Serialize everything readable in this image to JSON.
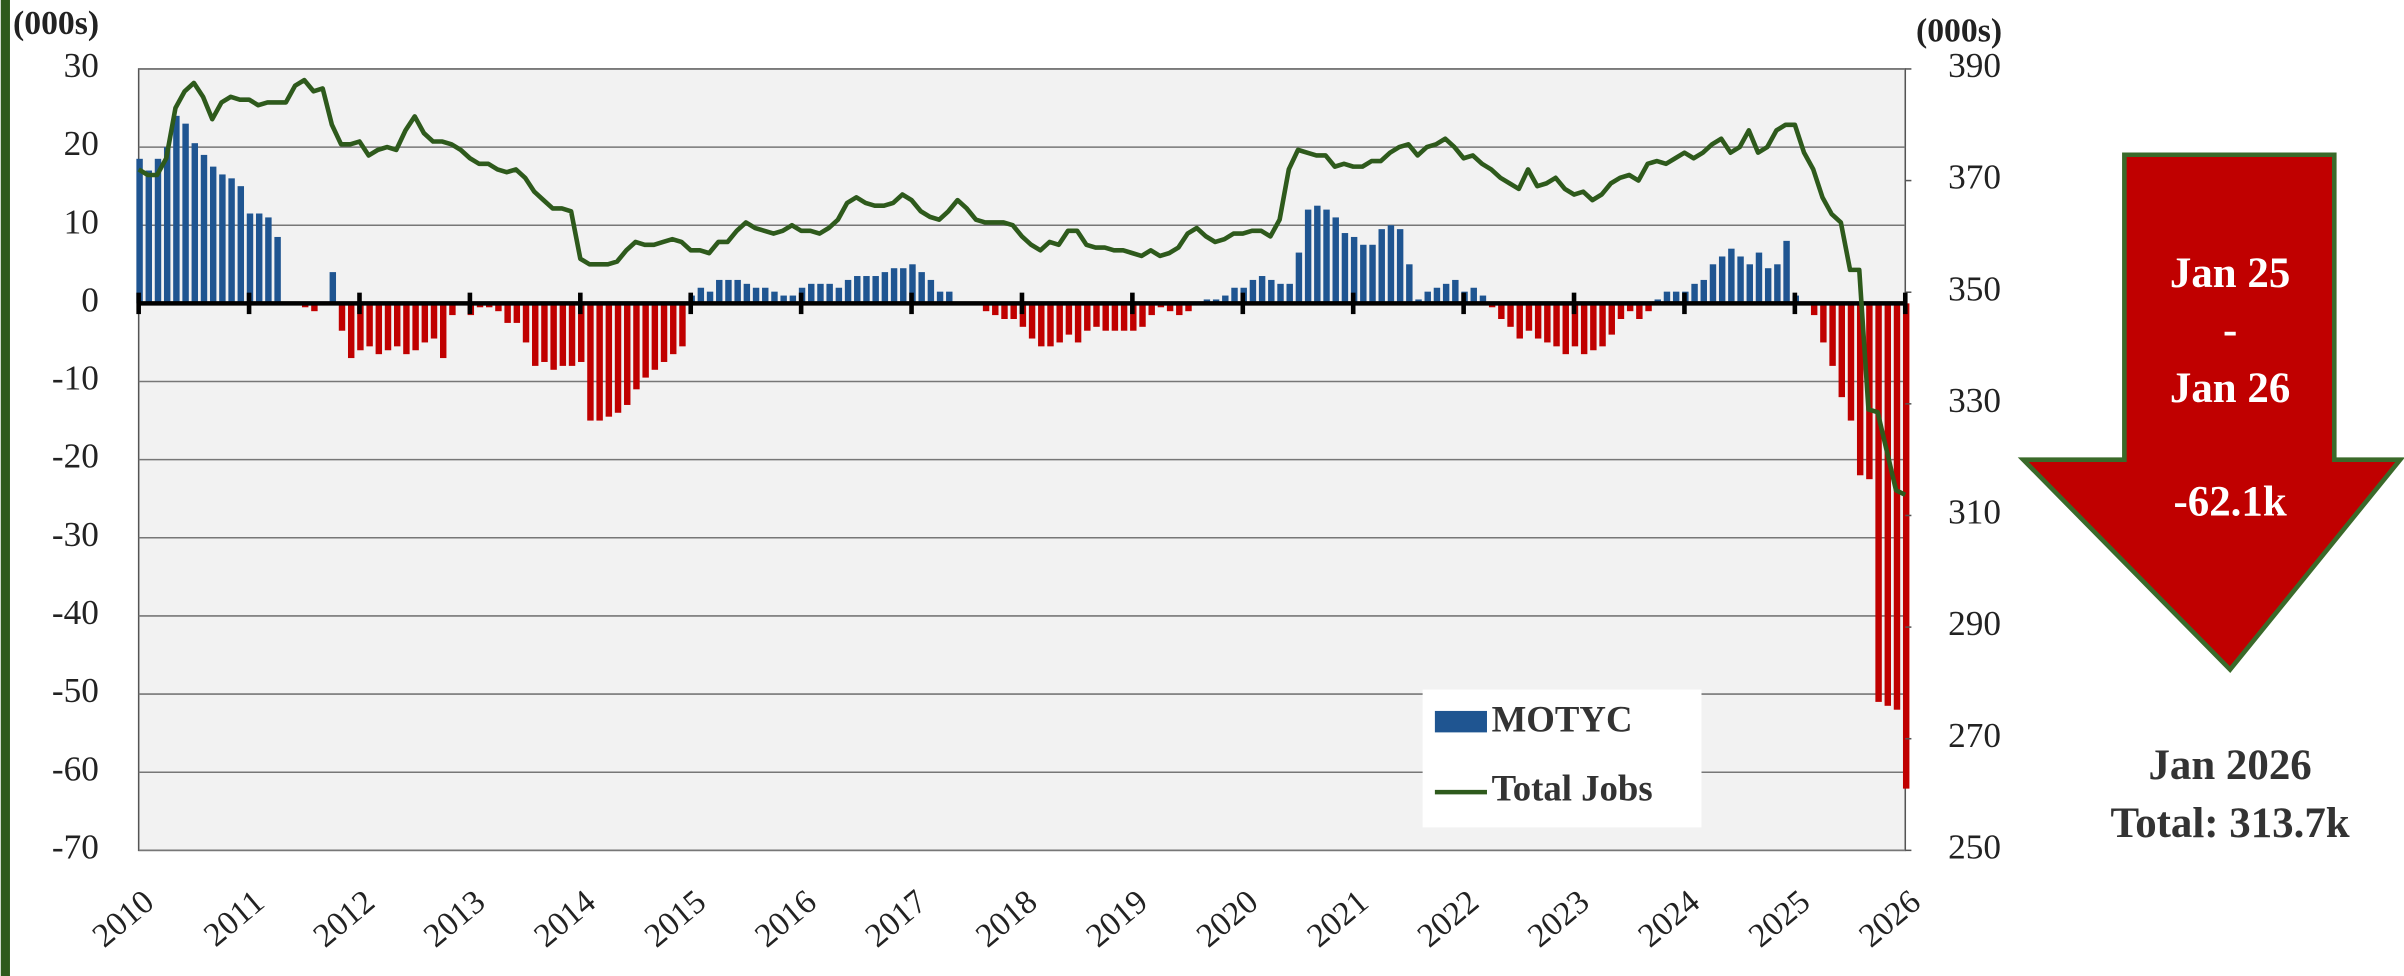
{
  "chart_data": {
    "type": "bar-line",
    "y_label": "(000s)",
    "y2_label": "(000s)",
    "categories": [
      "2010",
      null,
      null,
      null,
      null,
      null,
      null,
      null,
      null,
      null,
      null,
      null,
      "2011",
      null,
      null,
      null,
      null,
      null,
      null,
      null,
      null,
      null,
      null,
      null,
      "2012",
      null,
      null,
      null,
      null,
      null,
      null,
      null,
      null,
      null,
      null,
      null,
      "2013",
      null,
      null,
      null,
      null,
      null,
      null,
      null,
      null,
      null,
      null,
      null,
      "2014",
      null,
      null,
      null,
      null,
      null,
      null,
      null,
      null,
      null,
      null,
      null,
      "2015",
      null,
      null,
      null,
      null,
      null,
      null,
      null,
      null,
      null,
      null,
      null,
      "2016",
      null,
      null,
      null,
      null,
      null,
      null,
      null,
      null,
      null,
      null,
      null,
      "2017",
      null,
      null,
      null,
      null,
      null,
      null,
      null,
      null,
      null,
      null,
      null,
      "2018",
      null,
      null,
      null,
      null,
      null,
      null,
      null,
      null,
      null,
      null,
      null,
      "2019",
      null,
      null,
      null,
      null,
      null,
      null,
      null,
      null,
      null,
      null,
      null,
      "2020",
      null,
      null,
      null,
      null,
      null,
      null,
      null,
      null,
      null,
      null,
      null,
      "2021",
      null,
      null,
      null,
      null,
      null,
      null,
      null,
      null,
      null,
      null,
      null,
      "2022",
      null,
      null,
      null,
      null,
      null,
      null,
      null,
      null,
      null,
      null,
      null,
      "2023",
      null,
      null,
      null,
      null,
      null,
      null,
      null,
      null,
      null,
      null,
      null,
      "2024",
      null,
      null,
      null,
      null,
      null,
      null,
      null,
      null,
      null,
      null,
      null,
      "2025",
      null,
      null,
      null,
      null,
      null,
      null,
      null,
      null,
      null,
      null,
      null,
      "2026"
    ],
    "series": [
      {
        "name": "MOTYC",
        "type": "bar",
        "color": "#1f5591",
        "negative_color": "#c00000",
        "values": [
          18.5,
          17,
          18.5,
          20,
          24,
          23,
          20.5,
          19,
          17.5,
          16.5,
          16,
          15,
          11.5,
          11.5,
          11,
          8.5,
          0,
          0,
          -0.5,
          -1,
          0,
          4,
          -3.5,
          -7,
          -6,
          -5.5,
          -6.5,
          -6,
          -5.5,
          -6.5,
          -6,
          -5,
          -4.5,
          -7,
          -1.5,
          0,
          -1.5,
          -0.5,
          -0.5,
          -1,
          -2.5,
          -2.5,
          -5,
          -8,
          -7.5,
          -8.5,
          -8,
          -8,
          -7.5,
          -15,
          -15,
          -14.5,
          -14,
          -13,
          -11,
          -9.5,
          -8.5,
          -7.5,
          -6.5,
          -5.5,
          1,
          2,
          1.5,
          3,
          3,
          3,
          2.5,
          2,
          2,
          1.5,
          1,
          1,
          2,
          2.5,
          2.5,
          2.5,
          2,
          3,
          3.5,
          3.5,
          3.5,
          4,
          4.5,
          4.5,
          5,
          4,
          3,
          1.5,
          1.5,
          0,
          0,
          0,
          -1,
          -1.5,
          -2,
          -2,
          -3,
          -4.5,
          -5.5,
          -5.5,
          -5,
          -4,
          -5,
          -3.5,
          -3,
          -3.5,
          -3.5,
          -3.5,
          -3.5,
          -3,
          -1.5,
          -0.5,
          -1,
          -1.5,
          -1,
          0,
          0.5,
          0.5,
          1,
          2,
          2,
          3,
          3.5,
          3,
          2.5,
          2.5,
          6.5,
          12,
          12.5,
          12,
          11,
          9,
          8.5,
          7.5,
          7.5,
          9.5,
          10,
          9.5,
          5,
          0.5,
          1.5,
          2,
          2.5,
          3,
          1.5,
          2,
          1,
          -0.5,
          -2,
          -3,
          -4.5,
          -3.5,
          -4.5,
          -5,
          -5.5,
          -6.5,
          -5.5,
          -6.5,
          -6,
          -5.5,
          -4,
          -2,
          -1,
          -2,
          -1,
          0.5,
          1.5,
          1.5,
          1.5,
          2.5,
          3,
          5,
          6,
          7,
          6,
          5,
          6.5,
          4.5,
          5,
          8,
          1,
          0,
          -1.5,
          -5,
          -8,
          -12,
          -15,
          -22,
          -22.5,
          -51,
          -51.5,
          -52,
          -62.1
        ]
      },
      {
        "name": "Total Jobs",
        "type": "line",
        "axis": "y2",
        "color": "#2e5a1c",
        "values": [
          372,
          371,
          371,
          374,
          383,
          386,
          387.5,
          385,
          381,
          384,
          385,
          384.5,
          384.5,
          383.5,
          384,
          384,
          384,
          387,
          388,
          386,
          386.5,
          380,
          376.5,
          376.5,
          377,
          374.5,
          375.5,
          376,
          375.5,
          379,
          381.5,
          378.5,
          377,
          377,
          376.5,
          375.5,
          374,
          373,
          373,
          372,
          371.5,
          372,
          370.5,
          368,
          366.5,
          365,
          365,
          364.5,
          356,
          355,
          355,
          355,
          355.5,
          357.5,
          359,
          358.5,
          358.5,
          359,
          359.5,
          359,
          357.5,
          357.5,
          357,
          359,
          359,
          361,
          362.5,
          361.5,
          361,
          360.5,
          361,
          362,
          361,
          361,
          360.5,
          361.5,
          363,
          366,
          367,
          366,
          365.5,
          365.5,
          366,
          367.5,
          366.5,
          364.5,
          363.5,
          363,
          364.5,
          366.5,
          365,
          363,
          362.5,
          362.5,
          362.5,
          362,
          360,
          358.5,
          357.5,
          359,
          358.5,
          361,
          361,
          358.5,
          358,
          358,
          357.5,
          357.5,
          357,
          356.5,
          357.5,
          356.5,
          357,
          358,
          360.5,
          361.5,
          360,
          359,
          359.5,
          360.5,
          360.5,
          361,
          361,
          360,
          363,
          372,
          375.5,
          375,
          374.5,
          374.5,
          372.5,
          373,
          372.5,
          372.5,
          373.5,
          373.5,
          375,
          376,
          376.5,
          374.5,
          376,
          376.5,
          377.5,
          376,
          374,
          374.5,
          373,
          372,
          370.5,
          369.5,
          368.5,
          372,
          369,
          369.5,
          370.5,
          368.5,
          367.5,
          368,
          366.5,
          367.5,
          369.5,
          370.5,
          371,
          370,
          373,
          373.5,
          373,
          374,
          375,
          374,
          375,
          376.5,
          377.5,
          375,
          376,
          379,
          375,
          376,
          379,
          380,
          380,
          375,
          372,
          367,
          364,
          362.5,
          354,
          354,
          329,
          328.5,
          321.5,
          314.5,
          313.7
        ]
      }
    ],
    "ylim": [
      -70,
      30
    ],
    "yticks": [
      -70,
      -60,
      -50,
      -40,
      -30,
      -20,
      -10,
      0,
      10,
      20,
      30
    ],
    "y2lim": [
      250,
      390
    ],
    "y2ticks": [
      250,
      270,
      290,
      310,
      330,
      350,
      370,
      390
    ],
    "grid": true,
    "legend": "lower right",
    "annotation": {
      "lines": [
        "Jan 25",
        "-",
        "Jan 26",
        "-62.1k"
      ],
      "color": "#c00000"
    },
    "summary": [
      "Jan 2026",
      "Total: 313.7k"
    ]
  }
}
